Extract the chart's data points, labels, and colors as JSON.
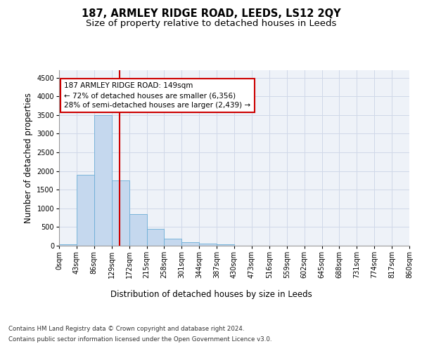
{
  "title": "187, ARMLEY RIDGE ROAD, LEEDS, LS12 2QY",
  "subtitle": "Size of property relative to detached houses in Leeds",
  "xlabel": "Distribution of detached houses by size in Leeds",
  "ylabel": "Number of detached properties",
  "bar_values": [
    30,
    1900,
    3500,
    1750,
    850,
    450,
    190,
    100,
    60,
    35,
    0,
    0,
    0,
    0,
    0,
    0,
    0,
    0,
    0,
    0
  ],
  "bar_labels": [
    "0sqm",
    "43sqm",
    "86sqm",
    "129sqm",
    "172sqm",
    "215sqm",
    "258sqm",
    "301sqm",
    "344sqm",
    "387sqm",
    "430sqm",
    "473sqm",
    "516sqm",
    "559sqm",
    "602sqm",
    "645sqm",
    "688sqm",
    "731sqm",
    "774sqm",
    "817sqm",
    "860sqm"
  ],
  "bar_color": "#c5d8ee",
  "bar_edge_color": "#6baed6",
  "vline_color": "#cc0000",
  "annotation_text": "187 ARMLEY RIDGE ROAD: 149sqm\n← 72% of detached houses are smaller (6,356)\n28% of semi-detached houses are larger (2,439) →",
  "annotation_box_color": "#ffffff",
  "annotation_border_color": "#cc0000",
  "ylim": [
    0,
    4700
  ],
  "yticks": [
    0,
    500,
    1000,
    1500,
    2000,
    2500,
    3000,
    3500,
    4000,
    4500
  ],
  "grid_color": "#d0d8e8",
  "bg_color": "#eef2f8",
  "footer_line1": "Contains HM Land Registry data © Crown copyright and database right 2024.",
  "footer_line2": "Contains public sector information licensed under the Open Government Licence v3.0.",
  "title_fontsize": 10.5,
  "subtitle_fontsize": 9.5,
  "axis_label_fontsize": 8.5,
  "tick_fontsize": 7,
  "annotation_fontsize": 7.5,
  "footer_fontsize": 6.2
}
